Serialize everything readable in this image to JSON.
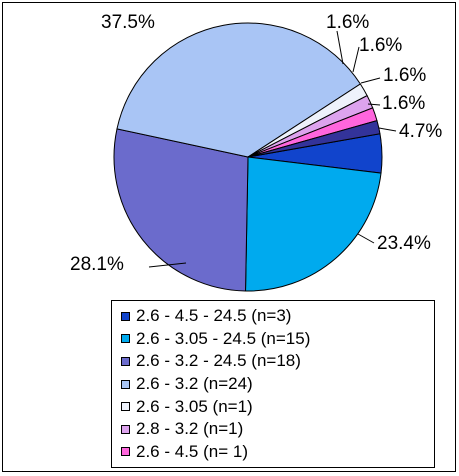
{
  "chart_data": {
    "type": "pie",
    "slices": [
      {
        "name": "2.6 - 4.5 - 24.5 (n=3)",
        "value": 4.7,
        "label": "4.7%",
        "color": "#1144CC"
      },
      {
        "name": "2.6 - 3.05 - 24.5 (n=15)",
        "value": 23.4,
        "label": "23.4%",
        "color": "#00AAEE"
      },
      {
        "name": "2.6 - 3.2 - 24.5 (n=18)",
        "value": 28.1,
        "label": "28.1%",
        "color": "#6B6BCC"
      },
      {
        "name": "2.6 - 3.2 (n=24)",
        "value": 37.5,
        "label": "37.5%",
        "color": "#A9C5F5"
      },
      {
        "name": "2.6 - 3.05 (n=1)",
        "value": 1.6,
        "label": "1.6%",
        "color": "#EEF2FB"
      },
      {
        "name": "2.8 - 3.2 (n=1)",
        "value": 1.6,
        "label": "1.6%",
        "color": "#DDA3EE"
      },
      {
        "name": "2.6 - 4.5 (n= 1)",
        "value": 1.6,
        "label": "1.6%",
        "color": "#FF66DD"
      },
      {
        "name": "",
        "value": 1.6,
        "label": "1.6%",
        "color": "#33339A"
      }
    ],
    "legend_position": "bottom",
    "legend": [
      "2.6 - 4.5 - 24.5 (n=3)",
      "2.6 - 3.05 - 24.5 (n=15)",
      "2.6 - 3.2 - 24.5 (n=18)",
      "2.6 - 3.2 (n=24)",
      "2.6 - 3.05 (n=1)",
      "2.8 - 3.2 (n=1)",
      "2.6 - 4.5 (n= 1)"
    ]
  }
}
